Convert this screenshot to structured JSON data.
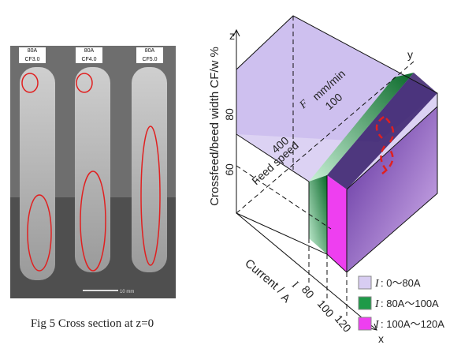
{
  "figure_left": {
    "columns": [
      {
        "current": "80A",
        "crossfeed": "CF3.0"
      },
      {
        "current": "80A",
        "crossfeed": "CF4.0"
      },
      {
        "current": "80A",
        "crossfeed": "CF5.0"
      }
    ],
    "scale_bar": "10 mm",
    "caption": "Fig 5 Cross section at z=0"
  },
  "figure_right": {
    "axes": {
      "z": "z",
      "y": "y",
      "x": "x"
    },
    "z_axis_label": "Crossfeed/beed width CF/w %",
    "z_ticks": [
      "80",
      "60"
    ],
    "feed_speed": {
      "label": "Feed speed",
      "symbol": "F",
      "unit": "mm/min",
      "ticks": [
        "100",
        "400"
      ]
    },
    "current": {
      "label": "Current /",
      "symbol": "I",
      "unit": "A",
      "ticks": [
        "80",
        "100",
        "120"
      ]
    },
    "legend": [
      {
        "symbol": "I",
        "range": ": 0～80A",
        "color": "#d8cdf2"
      },
      {
        "symbol": "I",
        "range": ": 80A～100A",
        "color": "#1e9a48"
      },
      {
        "symbol": "I",
        "range": ": 100A～120A",
        "color": "#ee3ff0"
      }
    ]
  }
}
